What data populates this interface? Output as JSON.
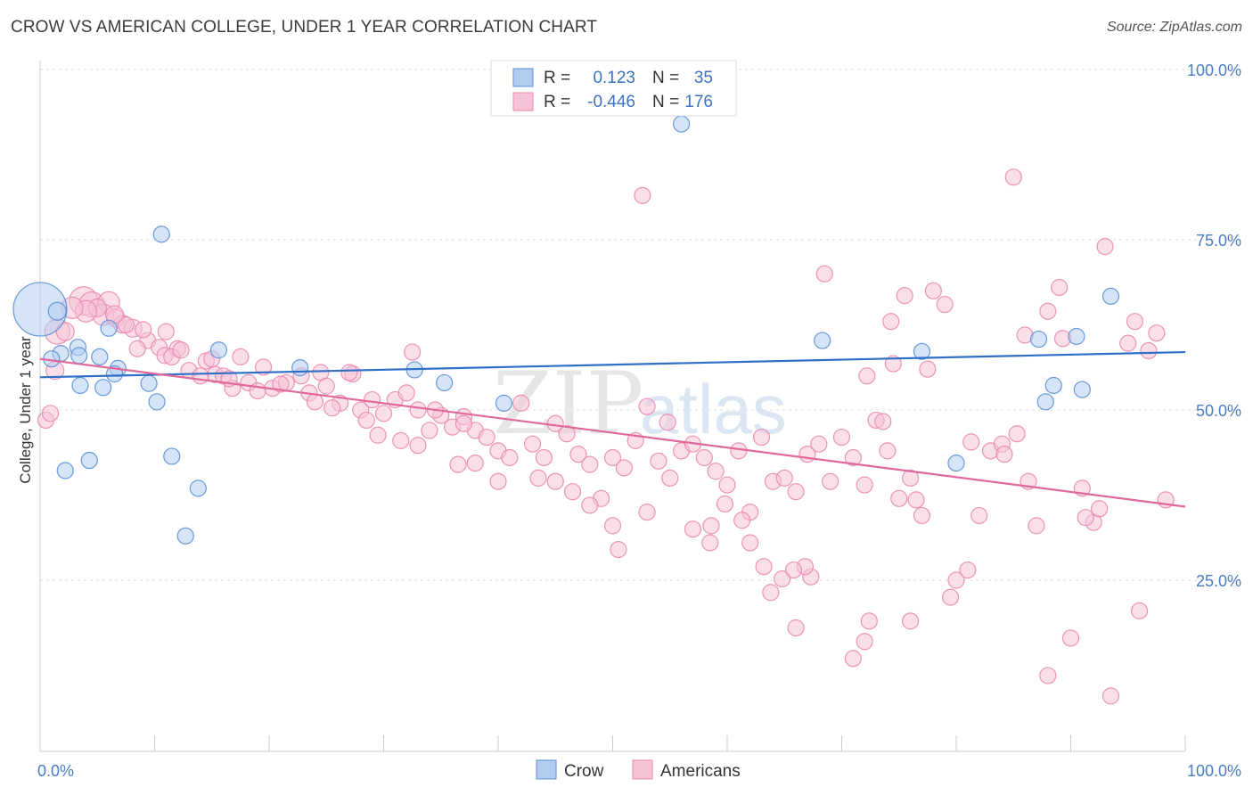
{
  "title": "CROW VS AMERICAN COLLEGE, UNDER 1 YEAR CORRELATION CHART",
  "source": "Source: ZipAtlas.com",
  "chart_data": {
    "type": "scatter",
    "xlabel": "",
    "ylabel": "College, Under 1 year",
    "xlim": [
      0,
      100
    ],
    "ylim": [
      0,
      100
    ],
    "x_tick_labels": [
      "0.0%",
      "100.0%"
    ],
    "y_tick_labels": [
      "25.0%",
      "50.0%",
      "75.0%",
      "100.0%"
    ],
    "y_ticks": [
      25,
      50,
      75,
      100
    ],
    "grid": true,
    "legend_position": "top-center",
    "watermark": {
      "part1": "ZIP",
      "part2": "atlas"
    },
    "stats": [
      {
        "r_label": "R =",
        "r_value": "0.123",
        "n_label": "N =",
        "n_value": "35"
      },
      {
        "r_label": "R =",
        "r_value": "-0.446",
        "n_label": "N =",
        "n_value": "176"
      }
    ],
    "series": [
      {
        "name": "Crow",
        "color": "#5b8fd6",
        "fill": "#b3cdf0",
        "trend": {
          "x": [
            0,
            100
          ],
          "y": [
            54.8,
            58.5
          ]
        },
        "points": [
          [
            0,
            64.8,
            30
          ],
          [
            1.5,
            64.5,
            10
          ],
          [
            1.8,
            58.3,
            9
          ],
          [
            3.3,
            59.2,
            9
          ],
          [
            1.0,
            57.5,
            9
          ],
          [
            3.4,
            58.0,
            9
          ],
          [
            5.2,
            57.8,
            9
          ],
          [
            6.8,
            56.1,
            9
          ],
          [
            6.5,
            55.3,
            9
          ],
          [
            5.5,
            53.3,
            9
          ],
          [
            3.5,
            53.6,
            9
          ],
          [
            9.5,
            53.9,
            9
          ],
          [
            10.2,
            51.2,
            9
          ],
          [
            2.2,
            41.1,
            9
          ],
          [
            4.3,
            42.6,
            9
          ],
          [
            11.5,
            43.2,
            9
          ],
          [
            13.8,
            38.5,
            9
          ],
          [
            12.7,
            31.5,
            9
          ],
          [
            10.6,
            75.8,
            9
          ],
          [
            15.6,
            58.8,
            9
          ],
          [
            22.7,
            56.2,
            9
          ],
          [
            32.7,
            55.9,
            9
          ],
          [
            35.3,
            54.0,
            9
          ],
          [
            40.5,
            51.0,
            9
          ],
          [
            56.0,
            92.0,
            9
          ],
          [
            68.3,
            60.2,
            9
          ],
          [
            77.0,
            58.6,
            9
          ],
          [
            80.0,
            42.2,
            9
          ],
          [
            87.2,
            60.4,
            9
          ],
          [
            88.5,
            53.6,
            9
          ],
          [
            87.8,
            51.2,
            9
          ],
          [
            90.5,
            60.8,
            9
          ],
          [
            91.0,
            53.0,
            9
          ],
          [
            93.5,
            66.7,
            9
          ],
          [
            6.0,
            62.0,
            9
          ]
        ]
      },
      {
        "name": "Americans",
        "color": "#e98ab0",
        "fill": "#f6c3d6",
        "trend": {
          "x": [
            0,
            100
          ],
          "y": [
            57.5,
            35.8
          ]
        },
        "points": [
          [
            1.5,
            61.5,
            14
          ],
          [
            3.8,
            66.0,
            16
          ],
          [
            4.5,
            65.5,
            14
          ],
          [
            6.0,
            65.8,
            12
          ],
          [
            5.5,
            64.0,
            12
          ],
          [
            6.6,
            63.5,
            10
          ],
          [
            7.2,
            62.6,
            10
          ],
          [
            8.1,
            62.0,
            10
          ],
          [
            7.5,
            62.5,
            9
          ],
          [
            9.4,
            60.2,
            9
          ],
          [
            10.4,
            59.2,
            9
          ],
          [
            10.9,
            58.0,
            9
          ],
          [
            12.0,
            59.0,
            9
          ],
          [
            11.5,
            57.8,
            9
          ],
          [
            13.0,
            55.8,
            9
          ],
          [
            14.5,
            57.2,
            9
          ],
          [
            15.3,
            55.2,
            9
          ],
          [
            16.0,
            55.0,
            9
          ],
          [
            16.8,
            53.2,
            9
          ],
          [
            18.2,
            54.0,
            9
          ],
          [
            19.5,
            56.3,
            9
          ],
          [
            20.3,
            53.2,
            9
          ],
          [
            21.5,
            54.0,
            9
          ],
          [
            22.8,
            55.0,
            9
          ],
          [
            23.5,
            52.5,
            9
          ],
          [
            24.5,
            55.5,
            9
          ],
          [
            25.0,
            53.5,
            9
          ],
          [
            26.2,
            51.0,
            9
          ],
          [
            27.3,
            55.3,
            9
          ],
          [
            28.0,
            50.0,
            9
          ],
          [
            29.0,
            51.5,
            9
          ],
          [
            30.0,
            49.5,
            9
          ],
          [
            31.0,
            51.5,
            9
          ],
          [
            32.0,
            52.5,
            9
          ],
          [
            33.0,
            50.0,
            9
          ],
          [
            34.0,
            47.0,
            9
          ],
          [
            35.0,
            49.2,
            9
          ],
          [
            36.0,
            47.5,
            9
          ],
          [
            37.0,
            49.0,
            9
          ],
          [
            38.0,
            47.0,
            9
          ],
          [
            39.0,
            46.0,
            9
          ],
          [
            40.0,
            44.0,
            9
          ],
          [
            41.0,
            43.0,
            9
          ],
          [
            42.0,
            51.0,
            9
          ],
          [
            43.0,
            45.0,
            9
          ],
          [
            44.0,
            43.0,
            9
          ],
          [
            45.0,
            48.0,
            9
          ],
          [
            46.0,
            46.5,
            9
          ],
          [
            47.0,
            43.5,
            9
          ],
          [
            48.0,
            42.0,
            9
          ],
          [
            49.0,
            37.0,
            9
          ],
          [
            50.0,
            43.0,
            9
          ],
          [
            51.0,
            41.5,
            9
          ],
          [
            52.0,
            45.5,
            9
          ],
          [
            53.0,
            50.5,
            9
          ],
          [
            54.0,
            42.5,
            9
          ],
          [
            55.0,
            40.0,
            9
          ],
          [
            56.0,
            44.0,
            9
          ],
          [
            57.0,
            45.0,
            9
          ],
          [
            58.0,
            43.0,
            9
          ],
          [
            59.0,
            41.0,
            9
          ],
          [
            60.0,
            39.0,
            9
          ],
          [
            61.0,
            44.0,
            9
          ],
          [
            62.0,
            35.0,
            9
          ],
          [
            63.0,
            46.0,
            9
          ],
          [
            64.0,
            39.5,
            9
          ],
          [
            65.0,
            40.0,
            9
          ],
          [
            66.0,
            38.0,
            9
          ],
          [
            67.0,
            43.5,
            9
          ],
          [
            68.0,
            45.0,
            9
          ],
          [
            69.0,
            39.5,
            9
          ],
          [
            70.0,
            46.0,
            9
          ],
          [
            71.0,
            43.0,
            9
          ],
          [
            72.0,
            39.0,
            9
          ],
          [
            73.0,
            48.5,
            9
          ],
          [
            74.0,
            44.0,
            9
          ],
          [
            75.0,
            37.0,
            9
          ],
          [
            76.0,
            40.0,
            9
          ],
          [
            77.0,
            34.5,
            9
          ],
          [
            78.0,
            67.5,
            9
          ],
          [
            79.0,
            65.5,
            9
          ],
          [
            80.0,
            25.0,
            9
          ],
          [
            81.0,
            26.5,
            9
          ],
          [
            82.0,
            34.5,
            9
          ],
          [
            83.0,
            44.0,
            9
          ],
          [
            84.0,
            45.0,
            9
          ],
          [
            85.0,
            84.2,
            9
          ],
          [
            86.0,
            61.0,
            9
          ],
          [
            87.0,
            33.0,
            9
          ],
          [
            88.0,
            64.5,
            9
          ],
          [
            89.0,
            68.0,
            9
          ],
          [
            90.0,
            16.5,
            9
          ],
          [
            91.0,
            38.5,
            9
          ],
          [
            92.0,
            33.5,
            9
          ],
          [
            93.0,
            74.0,
            9
          ],
          [
            93.5,
            8.0,
            9
          ],
          [
            95.0,
            59.8,
            9
          ],
          [
            96.0,
            20.5,
            9
          ],
          [
            97.5,
            61.3,
            9
          ],
          [
            88.0,
            11.0,
            9
          ],
          [
            52.6,
            81.5,
            9
          ],
          [
            68.5,
            70.0,
            9
          ],
          [
            75.5,
            66.8,
            9
          ],
          [
            74.3,
            63.0,
            9
          ],
          [
            72.2,
            55.0,
            9
          ],
          [
            74.5,
            56.8,
            9
          ],
          [
            77.5,
            56.0,
            9
          ],
          [
            76.5,
            36.8,
            9
          ],
          [
            73.6,
            48.3,
            9
          ],
          [
            72.4,
            19.0,
            9
          ],
          [
            71.0,
            13.5,
            9
          ],
          [
            76.0,
            19.0,
            9
          ],
          [
            72.0,
            16.0,
            9
          ],
          [
            66.0,
            18.0,
            9
          ],
          [
            67.3,
            25.5,
            9
          ],
          [
            66.8,
            27.0,
            9
          ],
          [
            63.2,
            27.0,
            9
          ],
          [
            62.0,
            30.5,
            9
          ],
          [
            58.5,
            30.5,
            9
          ],
          [
            57.0,
            32.5,
            9
          ],
          [
            50.5,
            29.5,
            9
          ],
          [
            50.0,
            33.0,
            9
          ],
          [
            53.0,
            35.0,
            9
          ],
          [
            48.0,
            36.0,
            9
          ],
          [
            46.5,
            38.0,
            9
          ],
          [
            45.0,
            39.5,
            9
          ],
          [
            43.5,
            40.0,
            9
          ],
          [
            40.0,
            39.5,
            9
          ],
          [
            36.5,
            42.0,
            9
          ],
          [
            38.0,
            42.2,
            9
          ],
          [
            33.0,
            44.8,
            9
          ],
          [
            31.5,
            45.5,
            9
          ],
          [
            29.5,
            46.3,
            9
          ],
          [
            28.5,
            48.5,
            9
          ],
          [
            34.5,
            50.0,
            9
          ],
          [
            37.0,
            48.0,
            9
          ],
          [
            32.5,
            58.5,
            9
          ],
          [
            27.0,
            55.5,
            9
          ],
          [
            25.5,
            50.3,
            9
          ],
          [
            24.0,
            51.2,
            9
          ],
          [
            21.0,
            53.8,
            9
          ],
          [
            19.0,
            52.8,
            9
          ],
          [
            17.5,
            57.8,
            9
          ],
          [
            16.5,
            54.6,
            9
          ],
          [
            15.0,
            57.5,
            9
          ],
          [
            14.0,
            55.0,
            9
          ],
          [
            12.3,
            58.8,
            9
          ],
          [
            11.0,
            61.5,
            9
          ],
          [
            9.0,
            61.8,
            9
          ],
          [
            8.5,
            59.0,
            9
          ],
          [
            6.5,
            64.0,
            10
          ],
          [
            5.0,
            65.0,
            10
          ],
          [
            4.0,
            64.5,
            12
          ],
          [
            2.8,
            65.0,
            12
          ],
          [
            1.3,
            55.8,
            10
          ],
          [
            0.5,
            48.5,
            9
          ],
          [
            0.9,
            49.5,
            9
          ],
          [
            2.2,
            61.5,
            10
          ],
          [
            58.6,
            33.0,
            9
          ],
          [
            59.8,
            36.2,
            9
          ],
          [
            61.3,
            33.8,
            9
          ],
          [
            63.8,
            23.2,
            9
          ],
          [
            64.8,
            25.2,
            9
          ],
          [
            65.8,
            26.5,
            9
          ],
          [
            79.5,
            22.5,
            9
          ],
          [
            84.2,
            43.5,
            9
          ],
          [
            85.3,
            46.5,
            9
          ],
          [
            86.3,
            39.5,
            9
          ],
          [
            89.3,
            60.5,
            9
          ],
          [
            91.3,
            34.2,
            9
          ],
          [
            92.5,
            35.5,
            9
          ],
          [
            95.6,
            63.0,
            9
          ],
          [
            96.8,
            58.7,
            9
          ],
          [
            98.3,
            36.8,
            9
          ],
          [
            81.3,
            45.3,
            9
          ],
          [
            54.8,
            48.2,
            9
          ]
        ]
      }
    ]
  }
}
